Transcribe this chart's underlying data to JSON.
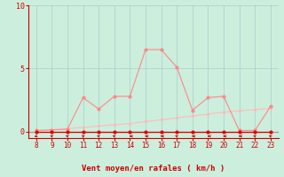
{
  "hours": [
    8,
    9,
    10,
    11,
    12,
    13,
    14,
    15,
    16,
    17,
    18,
    19,
    20,
    21,
    22,
    23
  ],
  "wind_mean": [
    0,
    0,
    0,
    0,
    0,
    0,
    0,
    0,
    0,
    0,
    0,
    0,
    0,
    0,
    0,
    0
  ],
  "wind_gusts": [
    0.1,
    0.15,
    0.2,
    2.7,
    1.8,
    2.8,
    2.8,
    6.5,
    6.5,
    5.1,
    1.7,
    2.7,
    2.8,
    0.1,
    0.1,
    2.0
  ],
  "wind_trend": [
    0.05,
    0.15,
    0.25,
    0.35,
    0.45,
    0.55,
    0.65,
    0.8,
    0.95,
    1.1,
    1.25,
    1.4,
    1.55,
    1.65,
    1.75,
    1.85
  ],
  "ylim": [
    -0.5,
    10
  ],
  "xlim": [
    7.5,
    23.5
  ],
  "yticks": [
    0,
    5,
    10
  ],
  "xticks": [
    8,
    9,
    10,
    11,
    12,
    13,
    14,
    15,
    16,
    17,
    18,
    19,
    20,
    21,
    22,
    23
  ],
  "xlabel": "Vent moyen/en rafales ( km/h )",
  "background_color": "#cceedd",
  "grid_color": "#aacccc",
  "line_gust_color": "#ff8888",
  "line_mean_color": "#dd0000",
  "line_trend_color": "#ffbbbb",
  "marker_color": "#dd0000",
  "tick_color": "#cc0000",
  "label_color": "#cc0000",
  "axis_color": "#cc0000",
  "arrow_angles": [
    225,
    315,
    315,
    45,
    315,
    315,
    270,
    270,
    270,
    315,
    270,
    270,
    270,
    270,
    315,
    315
  ]
}
